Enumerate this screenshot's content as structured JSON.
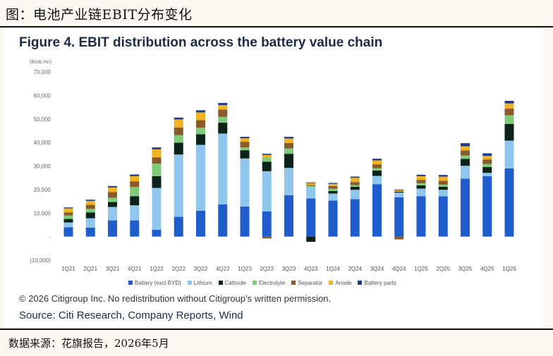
{
  "header": {
    "caption": "图：电池产业链EBIT分布变化",
    "figure_title": "Figure 4. EBIT distribution across the battery value chain"
  },
  "footer": {
    "copyright": "© 2026 Citigroup Inc. No redistribution without Citigroup’s written permission.",
    "source": "Source: Citi Research, Company Reports, Wind",
    "data_source": "数据来源：花旗报告，2026年5月"
  },
  "chart_data": {
    "type": "bar",
    "stacked": true,
    "unit_label": "(Rmb mn)",
    "ylim": [
      -10000,
      70000
    ],
    "yticks": [
      -10000,
      0,
      10000,
      20000,
      30000,
      40000,
      50000,
      60000,
      70000
    ],
    "ytick_labels": [
      "(10,000)",
      "-",
      "10,000",
      "20,000",
      "30,000",
      "40,000",
      "50,000",
      "60,000",
      "70,000"
    ],
    "grid": false,
    "legend_position": "bottom",
    "categories": [
      "1Q21",
      "2Q21",
      "3Q21",
      "4Q21",
      "1Q22",
      "2Q22",
      "3Q22",
      "4Q22",
      "1Q23",
      "2Q23",
      "3Q23",
      "4Q23",
      "1Q24",
      "2Q24",
      "3Q24",
      "4Q24",
      "1Q25",
      "2Q25",
      "3Q25",
      "4Q25",
      "1Q26"
    ],
    "series": [
      {
        "name": "Battery (excl BYD)",
        "color": "#1f5ccc",
        "values": [
          4000,
          3800,
          6900,
          6900,
          2900,
          8400,
          11000,
          13700,
          12800,
          10700,
          17600,
          16200,
          15300,
          15900,
          22300,
          16700,
          17200,
          17100,
          24600,
          25700,
          29000
        ]
      },
      {
        "name": "Lithium",
        "color": "#8fc7ee",
        "values": [
          2000,
          4000,
          5700,
          6400,
          17800,
          26500,
          28000,
          30100,
          20400,
          17100,
          11600,
          4600,
          3000,
          4000,
          3500,
          2000,
          3200,
          2800,
          5500,
          1400,
          11800
        ]
      },
      {
        "name": "Cathode",
        "color": "#0d2218",
        "values": [
          1500,
          2500,
          2100,
          3900,
          5000,
          5000,
          4500,
          4600,
          3500,
          4000,
          6000,
          -2200,
          1100,
          1300,
          2300,
          400,
          1400,
          1300,
          2900,
          2500,
          7100
        ]
      },
      {
        "name": "Electrolyte",
        "color": "#7ecb7a",
        "values": [
          1500,
          1500,
          1800,
          3900,
          5300,
          3200,
          2800,
          2500,
          1200,
          1800,
          2300,
          800,
          1000,
          700,
          1000,
          300,
          900,
          900,
          1500,
          1300,
          3700
        ]
      },
      {
        "name": "Separator",
        "color": "#8b5a2b",
        "values": [
          1300,
          1700,
          2400,
          2400,
          2700,
          3300,
          3200,
          3100,
          2400,
          -800,
          2300,
          400,
          1100,
          1300,
          1600,
          -1200,
          1400,
          1600,
          2100,
          1900,
          2800
        ]
      },
      {
        "name": "Anode",
        "color": "#f0b323",
        "values": [
          1700,
          1700,
          2000,
          2200,
          3400,
          3400,
          3300,
          1900,
          1500,
          1100,
          1900,
          700,
          900,
          1800,
          1700,
          300,
          1600,
          1800,
          1800,
          1500,
          2200
        ]
      },
      {
        "name": "Battery parts",
        "color": "#1a3a8a",
        "values": [
          400,
          500,
          600,
          700,
          800,
          800,
          900,
          900,
          600,
          500,
          700,
          300,
          400,
          500,
          700,
          300,
          600,
          700,
          1300,
          1100,
          1100
        ]
      }
    ]
  }
}
